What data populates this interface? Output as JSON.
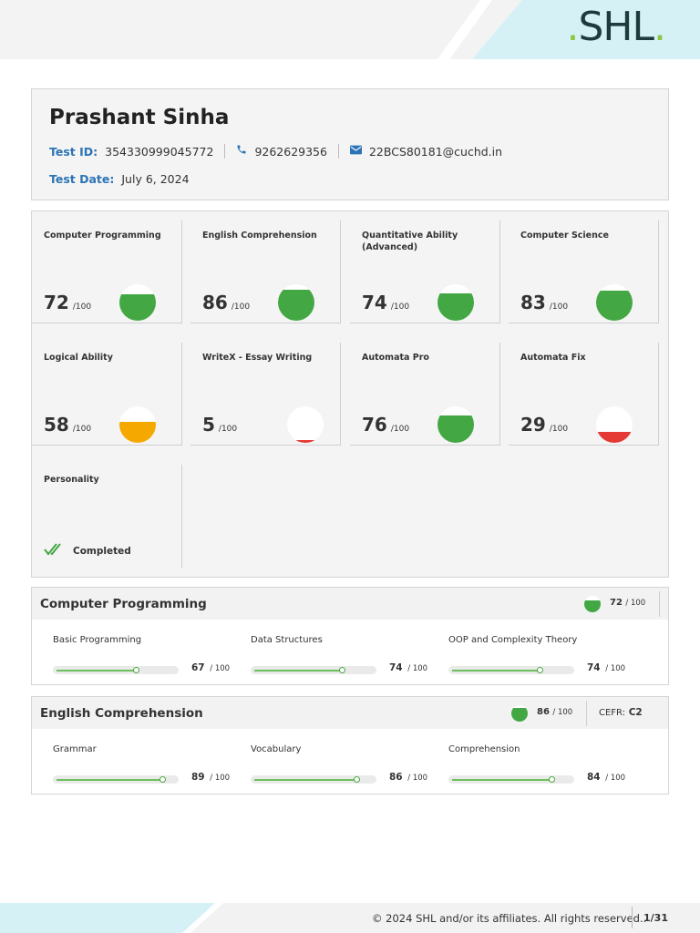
{
  "brand": {
    "logo_text": "SHL",
    "accent": "#8dc63f"
  },
  "candidate": {
    "name": "Prashant Sinha",
    "test_id_label": "Test ID:",
    "test_id": "354330999045772",
    "phone": "9262629356",
    "email": "22BCS80181@cuchd.in",
    "test_date_label": "Test Date:",
    "test_date": "July 6, 2024"
  },
  "tiles": [
    {
      "title": "Computer Programming",
      "score": "72",
      "out_of": "/100",
      "level": 0.72,
      "color": "#43a843"
    },
    {
      "title": "English Comprehension",
      "score": "86",
      "out_of": "/100",
      "level": 0.86,
      "color": "#43a843"
    },
    {
      "title": "Quantitative Ability (Advanced)",
      "score": "74",
      "out_of": "/100",
      "level": 0.74,
      "color": "#43a843"
    },
    {
      "title": "Computer Science",
      "score": "83",
      "out_of": "/100",
      "level": 0.83,
      "color": "#43a843"
    },
    {
      "title": "Logical Ability",
      "score": "58",
      "out_of": "/100",
      "level": 0.58,
      "color": "#f5a800"
    },
    {
      "title": "WriteX - Essay Writing",
      "score": "5",
      "out_of": "/100",
      "level": 0.05,
      "color": "#e53935"
    },
    {
      "title": "Automata Pro",
      "score": "76",
      "out_of": "/100",
      "level": 0.76,
      "color": "#43a843"
    },
    {
      "title": "Automata Fix",
      "score": "29",
      "out_of": "/100",
      "level": 0.29,
      "color": "#e53935"
    }
  ],
  "personality": {
    "title": "Personality",
    "status": "Completed"
  },
  "sections": [
    {
      "title": "Computer Programming",
      "score": "72",
      "out_of": "/ 100",
      "level": 0.72,
      "subs": [
        {
          "label": "Basic Programming",
          "score": "67",
          "out_of": "/ 100",
          "value": 67
        },
        {
          "label": "Data Structures",
          "score": "74",
          "out_of": "/ 100",
          "value": 74
        },
        {
          "label": "OOP and Complexity Theory",
          "score": "74",
          "out_of": "/ 100",
          "value": 74
        }
      ]
    },
    {
      "title": "English Comprehension",
      "score": "86",
      "out_of": "/ 100",
      "level": 0.86,
      "cefr_label": "CEFR:",
      "cefr_value": "C2",
      "subs": [
        {
          "label": "Grammar",
          "score": "89",
          "out_of": "/ 100",
          "value": 89
        },
        {
          "label": "Vocabulary",
          "score": "86",
          "out_of": "/ 100",
          "value": 86
        },
        {
          "label": "Comprehension",
          "score": "84",
          "out_of": "/ 100",
          "value": 84
        }
      ]
    }
  ],
  "footer": {
    "copyright": "© 2024 SHL and/or its affiliates. All rights reserved..",
    "page": "1/31"
  }
}
